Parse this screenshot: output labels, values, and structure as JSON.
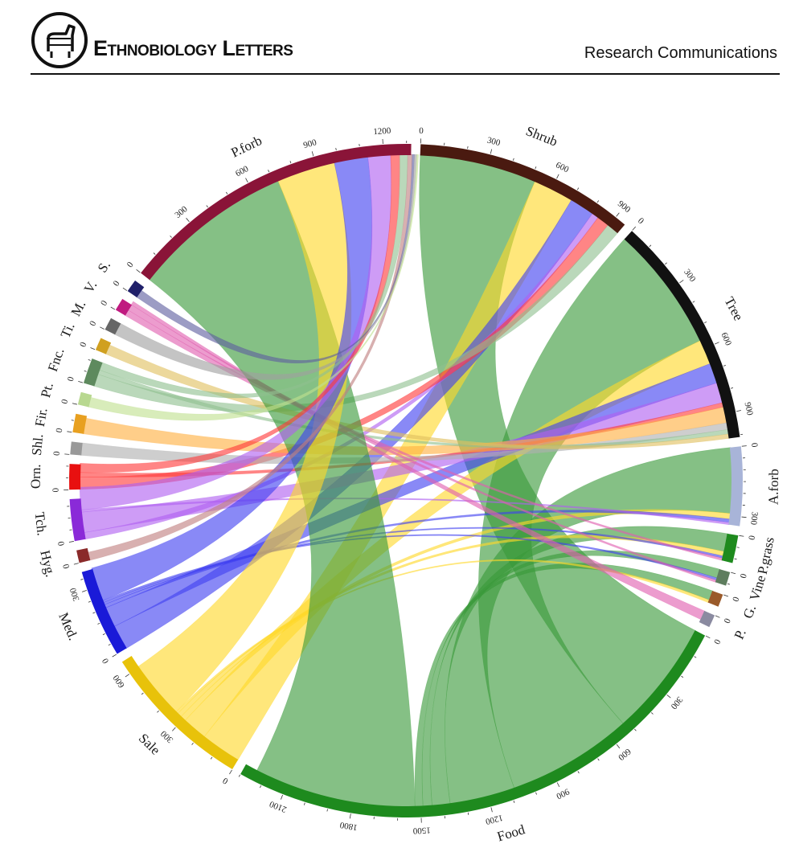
{
  "header": {
    "journal_name": "Ethnobiology Letters",
    "section": "Research Communications"
  },
  "chart_data": {
    "type": "chord",
    "segments": [
      {
        "label": "Shrub",
        "max": 950,
        "color": "#4a1a10",
        "ticks": [
          0,
          300,
          600,
          900
        ]
      },
      {
        "label": "Tree",
        "max": 1010,
        "color": "#111111",
        "ticks": [
          0,
          300,
          600,
          900
        ]
      },
      {
        "label": "A.forb",
        "max": 340,
        "color": "#a8b4d8",
        "ticks": [
          0,
          300
        ]
      },
      {
        "label": "P.grass",
        "max": 120,
        "color": "#1e8a1e",
        "ticks": [
          0
        ]
      },
      {
        "label": "Vine",
        "max": 60,
        "color": "#5e7d5e",
        "ticks": [
          0
        ]
      },
      {
        "label": "G.",
        "max": 45,
        "color": "#9a5a2a",
        "ticks": [
          0
        ]
      },
      {
        "label": "P.",
        "max": 8,
        "color": "#8a8aa0",
        "ticks": [
          0
        ]
      },
      {
        "label": "Food",
        "max": 2300,
        "color": "#1e8a1e",
        "ticks": [
          0,
          300,
          600,
          900,
          1200,
          1500,
          1800,
          2100
        ]
      },
      {
        "label": "Sale",
        "max": 660,
        "color": "#e8c20a",
        "ticks": [
          0,
          300,
          600
        ]
      },
      {
        "label": "Med.",
        "max": 380,
        "color": "#1a1ad8",
        "ticks": [
          0,
          300
        ]
      },
      {
        "label": "Hyg.",
        "max": 30,
        "color": "#8a2a2a",
        "ticks": [
          0
        ]
      },
      {
        "label": "Tch.",
        "max": 180,
        "color": "#8a2ad8",
        "ticks": [
          0
        ]
      },
      {
        "label": "Orn.",
        "max": 110,
        "color": "#e81010",
        "ticks": [
          0
        ]
      },
      {
        "label": "Shl.",
        "max": 30,
        "color": "#999999",
        "ticks": [
          0
        ]
      },
      {
        "label": "Fir.",
        "max": 80,
        "color": "#e8a020",
        "ticks": [
          0
        ]
      },
      {
        "label": "Pt.",
        "max": 10,
        "color": "#b8d890",
        "ticks": [
          0
        ]
      },
      {
        "label": "Fnc.",
        "max": 110,
        "color": "#5e8a5e",
        "ticks": [
          0
        ]
      },
      {
        "label": "Ti.",
        "max": 25,
        "color": "#d0a020",
        "ticks": [
          0
        ]
      },
      {
        "label": "M.",
        "max": 10,
        "color": "#666666",
        "ticks": [
          0
        ]
      },
      {
        "label": "V.",
        "max": 20,
        "color": "#c01a80",
        "ticks": [
          0
        ]
      },
      {
        "label": "S.",
        "max": 15,
        "color": "#20206a",
        "ticks": [
          0
        ]
      },
      {
        "label": "P.forb",
        "max": 1320,
        "color": "#8a1438",
        "ticks": [
          0,
          300,
          600,
          900,
          1200
        ]
      }
    ],
    "use_colors": {
      "Food": "#3a9a3a",
      "Sale": "#ffd92a",
      "Med.": "#4040f0",
      "Tch.": "#b060f0",
      "Orn.": "#ff3a3a",
      "Shl.": "#b0b0b0",
      "Fir.": "#ffb040",
      "Fnc.": "#90c090",
      "Ti.": "#e0c060",
      "Hyg.": "#c08080",
      "Pt.": "#c0e090",
      "M.": "#a0a0a0",
      "V.": "#e060b0",
      "S.": "#6060a0"
    },
    "links": [
      {
        "from": "Shrub",
        "to": "Food",
        "value": 520
      },
      {
        "from": "Shrub",
        "to": "Sale",
        "value": 180
      },
      {
        "from": "Shrub",
        "to": "Med.",
        "value": 110
      },
      {
        "from": "Shrub",
        "to": "Tch.",
        "value": 30
      },
      {
        "from": "Shrub",
        "to": "Orn.",
        "value": 55
      },
      {
        "from": "Shrub",
        "to": "Fnc.",
        "value": 55
      },
      {
        "from": "Tree",
        "to": "Food",
        "value": 560
      },
      {
        "from": "Tree",
        "to": "Sale",
        "value": 110
      },
      {
        "from": "Tree",
        "to": "Med.",
        "value": 90
      },
      {
        "from": "Tree",
        "to": "Tch.",
        "value": 90
      },
      {
        "from": "Tree",
        "to": "Orn.",
        "value": 20
      },
      {
        "from": "Tree",
        "to": "Fir.",
        "value": 70
      },
      {
        "from": "Tree",
        "to": "Shl.",
        "value": 30
      },
      {
        "from": "Tree",
        "to": "Fnc.",
        "value": 20
      },
      {
        "from": "Tree",
        "to": "Ti.",
        "value": 20
      },
      {
        "from": "A.forb",
        "to": "Food",
        "value": 290
      },
      {
        "from": "A.forb",
        "to": "Sale",
        "value": 25
      },
      {
        "from": "A.forb",
        "to": "Med.",
        "value": 15
      },
      {
        "from": "A.forb",
        "to": "Tch.",
        "value": 10
      },
      {
        "from": "P.grass",
        "to": "Food",
        "value": 80
      },
      {
        "from": "P.grass",
        "to": "Sale",
        "value": 20
      },
      {
        "from": "P.grass",
        "to": "Med.",
        "value": 10
      },
      {
        "from": "P.grass",
        "to": "V.",
        "value": 10
      },
      {
        "from": "Vine",
        "to": "Food",
        "value": 40
      },
      {
        "from": "Vine",
        "to": "Med.",
        "value": 10
      },
      {
        "from": "Vine",
        "to": "V.",
        "value": 10
      },
      {
        "from": "G.",
        "to": "Food",
        "value": 35
      },
      {
        "from": "G.",
        "to": "Sale",
        "value": 10
      },
      {
        "from": "P.",
        "to": "V.",
        "value": 6
      },
      {
        "from": "P.forb",
        "to": "Food",
        "value": 720
      },
      {
        "from": "P.forb",
        "to": "Sale",
        "value": 260
      },
      {
        "from": "P.forb",
        "to": "Med.",
        "value": 150
      },
      {
        "from": "P.forb",
        "to": "Tch.",
        "value": 100
      },
      {
        "from": "P.forb",
        "to": "Orn.",
        "value": 40
      },
      {
        "from": "P.forb",
        "to": "Fnc.",
        "value": 35
      },
      {
        "from": "P.forb",
        "to": "Hyg.",
        "value": 20
      },
      {
        "from": "P.forb",
        "to": "S.",
        "value": 10
      },
      {
        "from": "P.forb",
        "to": "M.",
        "value": 10
      },
      {
        "from": "P.forb",
        "to": "Pt.",
        "value": 8
      }
    ]
  }
}
